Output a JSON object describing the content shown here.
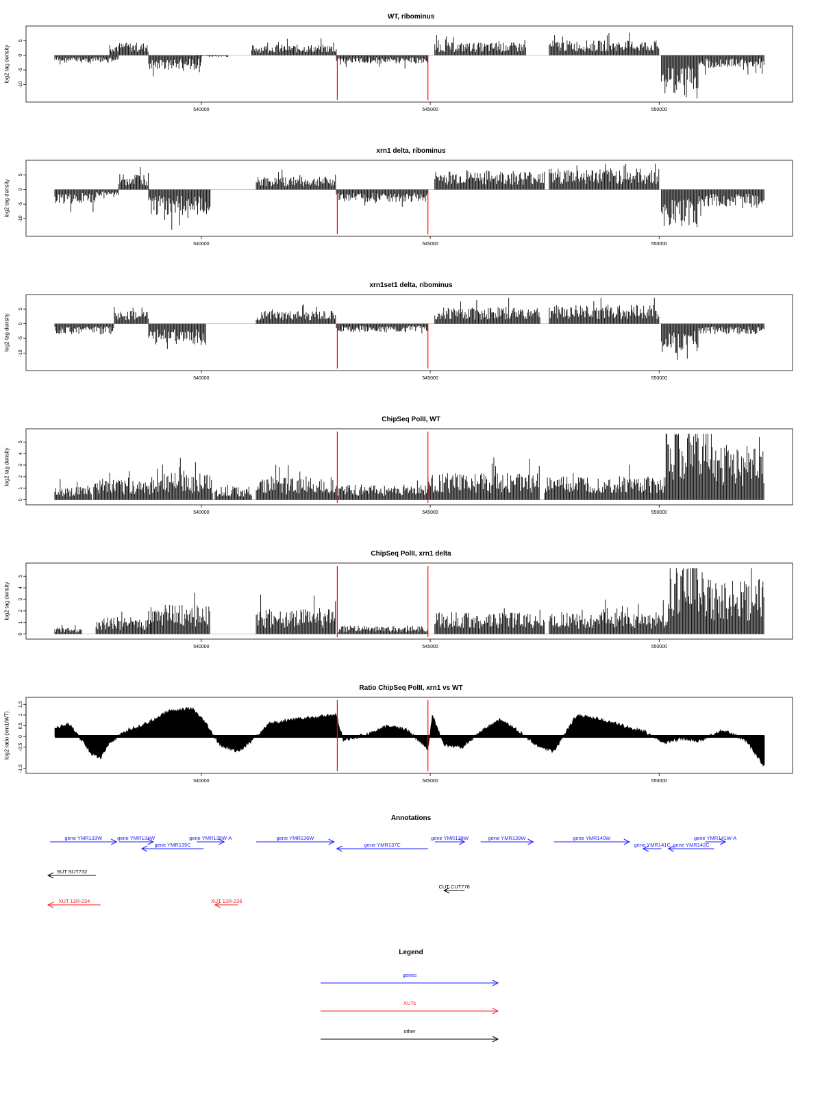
{
  "colors": {
    "gene": "#1a1aff",
    "xut": "#ff1a1a",
    "other": "#000000",
    "marker": "#ff0000",
    "bar": "#000000"
  },
  "x_axis": {
    "ticks": [
      540000,
      545000,
      550000
    ],
    "range": [
      536500,
      552700
    ]
  },
  "markers": [
    542970,
    544950
  ],
  "chart_data": [
    {
      "type": "bar",
      "title": "WT, ribominus",
      "ylabel": "log2 tag density",
      "yticks": [
        5,
        0,
        -5,
        -10
      ],
      "ylim": [
        -15,
        9
      ],
      "segments": [
        {
          "start": 536800,
          "end": 538200,
          "level": -1.8,
          "sign": -1
        },
        {
          "start": 538000,
          "end": 538850,
          "level": 3,
          "sign": 1
        },
        {
          "start": 538850,
          "end": 540000,
          "level": -3.5,
          "sign": -1
        },
        {
          "start": 539900,
          "end": 540600,
          "level": -0.4,
          "sign": -1
        },
        {
          "start": 541100,
          "end": 542950,
          "level": 2.5,
          "sign": 1
        },
        {
          "start": 542950,
          "end": 544950,
          "level": -2,
          "sign": -1
        },
        {
          "start": 545100,
          "end": 547100,
          "level": 3,
          "sign": 1
        },
        {
          "start": 547600,
          "end": 550000,
          "level": 3.5,
          "sign": 1
        },
        {
          "start": 550050,
          "end": 550850,
          "level": -9,
          "sign": -1
        },
        {
          "start": 550850,
          "end": 552300,
          "level": -3,
          "sign": -1
        }
      ]
    },
    {
      "type": "bar",
      "title": "xrn1 delta, ribominus",
      "ylabel": "log2 tag density",
      "yticks": [
        5,
        0,
        -5,
        -10
      ],
      "ylim": [
        -15,
        9
      ],
      "segments": [
        {
          "start": 536800,
          "end": 537700,
          "level": -3.5,
          "sign": -1
        },
        {
          "start": 537700,
          "end": 538200,
          "level": -1.5,
          "sign": -1
        },
        {
          "start": 538200,
          "end": 538850,
          "level": 4,
          "sign": 1
        },
        {
          "start": 538850,
          "end": 540200,
          "level": -6,
          "sign": -1
        },
        {
          "start": 541200,
          "end": 542950,
          "level": 3,
          "sign": 1
        },
        {
          "start": 542950,
          "end": 544950,
          "level": -3,
          "sign": -1
        },
        {
          "start": 545100,
          "end": 547500,
          "level": 4.5,
          "sign": 1
        },
        {
          "start": 547600,
          "end": 550000,
          "level": 5,
          "sign": 1
        },
        {
          "start": 550050,
          "end": 550850,
          "level": -9,
          "sign": -1
        },
        {
          "start": 550850,
          "end": 552300,
          "level": -4,
          "sign": -1
        }
      ]
    },
    {
      "type": "bar",
      "title": "xrn1set1 delta, ribominus",
      "ylabel": "log2 tag density",
      "yticks": [
        5,
        0,
        -5,
        -10
      ],
      "ylim": [
        -15,
        9
      ],
      "segments": [
        {
          "start": 536800,
          "end": 538100,
          "level": -2.5,
          "sign": -1
        },
        {
          "start": 538100,
          "end": 538850,
          "level": 3,
          "sign": 1
        },
        {
          "start": 538850,
          "end": 540100,
          "level": -5,
          "sign": -1
        },
        {
          "start": 541200,
          "end": 542950,
          "level": 3,
          "sign": 1
        },
        {
          "start": 542950,
          "end": 544950,
          "level": -2,
          "sign": -1
        },
        {
          "start": 545100,
          "end": 547400,
          "level": 4,
          "sign": 1
        },
        {
          "start": 547600,
          "end": 550000,
          "level": 4.5,
          "sign": 1
        },
        {
          "start": 550050,
          "end": 550850,
          "level": -7,
          "sign": -1
        },
        {
          "start": 550850,
          "end": 552300,
          "level": -2.5,
          "sign": -1
        }
      ]
    },
    {
      "type": "bar",
      "title": "ChipSeq PolII, WT",
      "ylabel": "log2 tag density",
      "yticks": [
        0,
        1,
        2,
        3,
        4,
        5
      ],
      "ylim": [
        -0.2,
        5.9
      ],
      "segments": [
        {
          "start": 536800,
          "end": 537600,
          "level": 0.8,
          "sign": 1
        },
        {
          "start": 537650,
          "end": 538900,
          "level": 1.2,
          "sign": 1
        },
        {
          "start": 538900,
          "end": 540250,
          "level": 1.6,
          "sign": 1
        },
        {
          "start": 540300,
          "end": 541100,
          "level": 0.8,
          "sign": 1
        },
        {
          "start": 541200,
          "end": 542950,
          "level": 1.4,
          "sign": 1
        },
        {
          "start": 542950,
          "end": 544950,
          "level": 0.9,
          "sign": 1
        },
        {
          "start": 544950,
          "end": 547400,
          "level": 1.6,
          "sign": 1
        },
        {
          "start": 547500,
          "end": 550150,
          "level": 1.4,
          "sign": 1
        },
        {
          "start": 550150,
          "end": 551100,
          "level": 4.6,
          "sign": 1
        },
        {
          "start": 551100,
          "end": 552300,
          "level": 3.3,
          "sign": 1
        }
      ]
    },
    {
      "type": "bar",
      "title": "ChipSeq PolII, xrn1 delta",
      "ylabel": "log2 tag density",
      "yticks": [
        0,
        1,
        2,
        3,
        4,
        5
      ],
      "ylim": [
        -0.2,
        5.9
      ],
      "segments": [
        {
          "start": 536800,
          "end": 537400,
          "level": 0.4,
          "sign": 1
        },
        {
          "start": 537700,
          "end": 538900,
          "level": 1.0,
          "sign": 1
        },
        {
          "start": 538900,
          "end": 540200,
          "level": 1.8,
          "sign": 1
        },
        {
          "start": 541200,
          "end": 542950,
          "level": 1.5,
          "sign": 1
        },
        {
          "start": 543000,
          "end": 544950,
          "level": 0.5,
          "sign": 1
        },
        {
          "start": 545100,
          "end": 547500,
          "level": 1.3,
          "sign": 1
        },
        {
          "start": 547600,
          "end": 550200,
          "level": 1.3,
          "sign": 1
        },
        {
          "start": 550200,
          "end": 551100,
          "level": 4.4,
          "sign": 1
        },
        {
          "start": 551100,
          "end": 552300,
          "level": 3.3,
          "sign": 1
        }
      ]
    },
    {
      "type": "area",
      "title": "Ratio ChipSeq PolII, xrn1 vs WT",
      "ylabel": "log2 ratio (xrn1/WT)",
      "yticks": [
        1.5,
        1.0,
        0.5,
        0,
        -0.5,
        -1.5
      ],
      "ylim": [
        -1.6,
        1.7
      ],
      "x": [
        536800,
        537100,
        537400,
        537600,
        537800,
        538000,
        538400,
        538800,
        539300,
        539800,
        540100,
        540400,
        540800,
        541100,
        541500,
        542000,
        542500,
        542950,
        543100,
        543600,
        544100,
        544500,
        544950,
        545050,
        545300,
        545700,
        546100,
        546500,
        546900,
        547300,
        547700,
        548200,
        548700,
        549200,
        549700,
        550100,
        550500,
        550900,
        551400,
        551900,
        552300
      ],
      "y": [
        0.4,
        0.6,
        -0.2,
        -0.8,
        -1.0,
        -0.3,
        0.3,
        0.6,
        1.2,
        1.3,
        0.6,
        -0.4,
        -0.7,
        -0.2,
        0.6,
        0.8,
        0.9,
        1.0,
        -0.2,
        0.1,
        0.5,
        0.3,
        -0.6,
        1.0,
        -0.4,
        -0.5,
        0.2,
        0.8,
        0.3,
        -0.4,
        -0.7,
        1.0,
        0.8,
        0.5,
        0.2,
        -0.3,
        -0.1,
        -0.2,
        0.3,
        -0.2,
        -1.4
      ]
    }
  ],
  "annotations": {
    "title": "Annotations",
    "features": [
      {
        "label": "gene YMR133W",
        "kind": "gene",
        "start": 536700,
        "end": 538150,
        "dir": 1,
        "row": 0
      },
      {
        "label": "gene YMR134W",
        "kind": "gene",
        "start": 538200,
        "end": 538950,
        "dir": 1,
        "row": 0
      },
      {
        "label": "gene YMR135C",
        "kind": "gene",
        "start": 538700,
        "end": 540050,
        "dir": -1,
        "row": 1
      },
      {
        "label": "gene YMR135W-A",
        "kind": "gene",
        "start": 539900,
        "end": 540500,
        "dir": 1,
        "row": 0
      },
      {
        "label": "gene YMR136W",
        "kind": "gene",
        "start": 541200,
        "end": 542900,
        "dir": 1,
        "row": 0
      },
      {
        "label": "gene YMR137C",
        "kind": "gene",
        "start": 542960,
        "end": 544950,
        "dir": -1,
        "row": 1
      },
      {
        "label": "gene YMR138W",
        "kind": "gene",
        "start": 545100,
        "end": 545750,
        "dir": 1,
        "row": 0
      },
      {
        "label": "gene YMR139W",
        "kind": "gene",
        "start": 546100,
        "end": 547250,
        "dir": 1,
        "row": 0
      },
      {
        "label": "gene YMR140W",
        "kind": "gene",
        "start": 547700,
        "end": 549350,
        "dir": 1,
        "row": 0
      },
      {
        "label": "gene YMR141C",
        "kind": "gene",
        "start": 549650,
        "end": 550050,
        "dir": -1,
        "row": 1
      },
      {
        "label": "gene YMR142C",
        "kind": "gene",
        "start": 550200,
        "end": 551200,
        "dir": -1,
        "row": 1
      },
      {
        "label": "gene YMR141W-A",
        "kind": "gene",
        "start": 551000,
        "end": 551450,
        "dir": 1,
        "row": 0
      },
      {
        "label": "SUT SUT732",
        "kind": "other",
        "start": 536650,
        "end": 537700,
        "dir": -1,
        "row": 2
      },
      {
        "label": "CUT CUT776",
        "kind": "other",
        "start": 545300,
        "end": 545750,
        "dir": -1,
        "row": 3
      },
      {
        "label": "XUT 13R-234",
        "kind": "xut",
        "start": 536650,
        "end": 537800,
        "dir": -1,
        "row": 4
      },
      {
        "label": "XUT 13R-236",
        "kind": "xut",
        "start": 540300,
        "end": 540800,
        "dir": -1,
        "row": 4
      }
    ]
  },
  "legend": {
    "title": "Legend",
    "items": [
      {
        "label": "genes",
        "kind": "gene"
      },
      {
        "label": "XUTs",
        "kind": "xut"
      },
      {
        "label": "other",
        "kind": "other"
      }
    ]
  }
}
